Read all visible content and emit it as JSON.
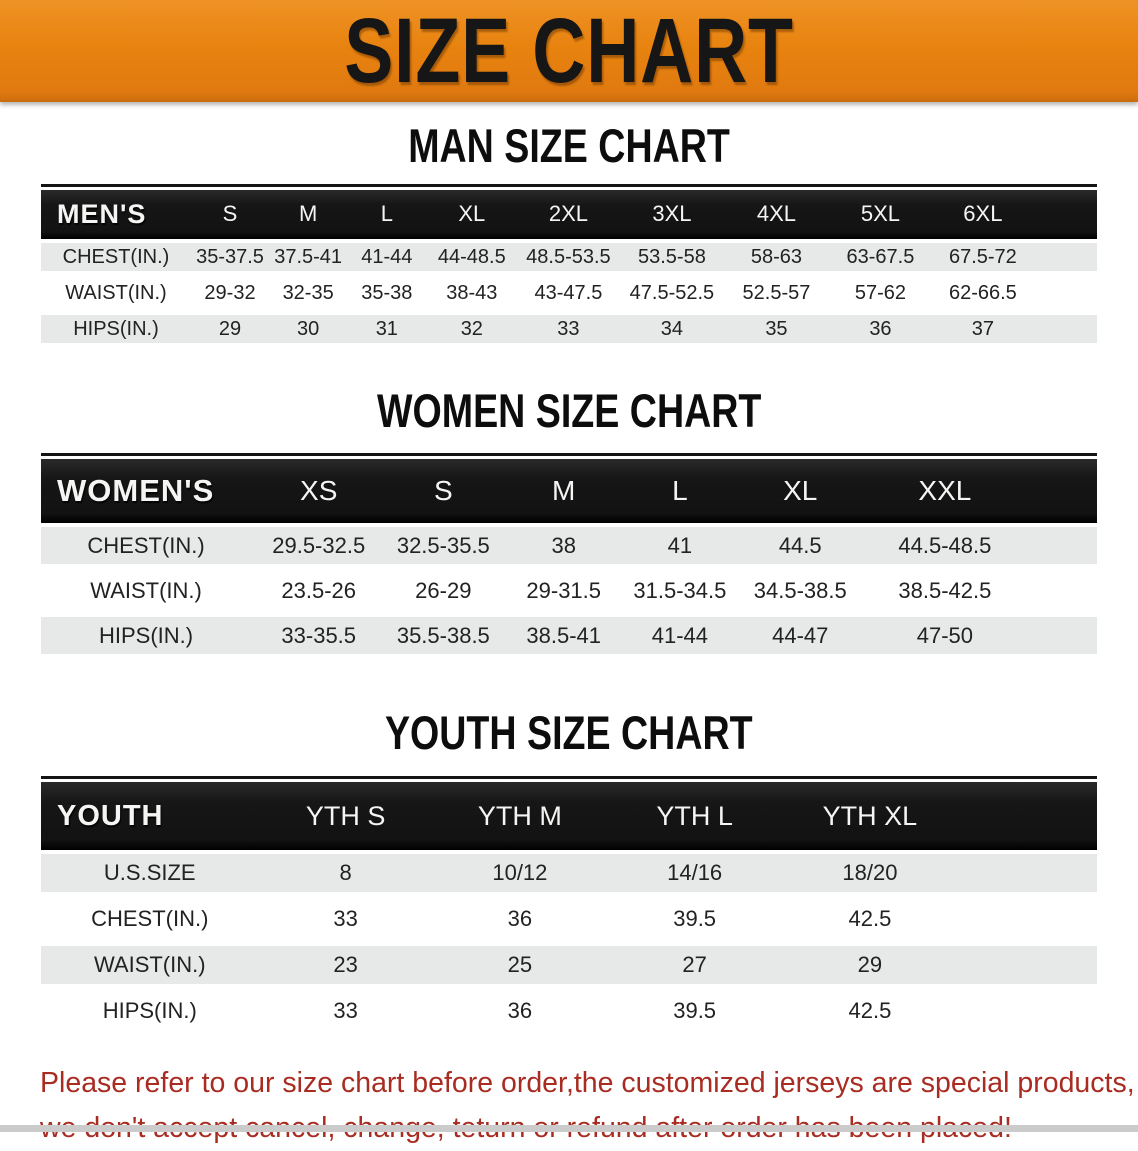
{
  "banner": {
    "title": "SIZE CHART"
  },
  "sections": {
    "men": {
      "heading": "MAN SIZE CHART",
      "header_label": "MEN'S",
      "columns": [
        "S",
        "M",
        "L",
        "XL",
        "2XL",
        "3XL",
        "4XL",
        "5XL",
        "6XL"
      ],
      "rows": [
        {
          "label": "CHEST(IN.)",
          "values": [
            "35-37.5",
            "37.5-41",
            "41-44",
            "44-48.5",
            "48.5-53.5",
            "53.5-58",
            "58-63",
            "63-67.5",
            "67.5-72"
          ]
        },
        {
          "label": "WAIST(IN.)",
          "values": [
            "29-32",
            "32-35",
            "35-38",
            "38-43",
            "43-47.5",
            "47.5-52.5",
            "52.5-57",
            "57-62",
            "62-66.5"
          ]
        },
        {
          "label": "HIPS(IN.)",
          "values": [
            "29",
            "30",
            "31",
            "32",
            "33",
            "34",
            "35",
            "36",
            "37"
          ]
        }
      ]
    },
    "women": {
      "heading": "WOMEN SIZE CHART",
      "header_label": "WOMEN'S",
      "columns": [
        "XS",
        "S",
        "M",
        "L",
        "XL",
        "XXL"
      ],
      "rows": [
        {
          "label": "CHEST(IN.)",
          "values": [
            "29.5-32.5",
            "32.5-35.5",
            "38",
            "41",
            "44.5",
            "44.5-48.5"
          ]
        },
        {
          "label": "WAIST(IN.)",
          "values": [
            "23.5-26",
            "26-29",
            "29-31.5",
            "31.5-34.5",
            "34.5-38.5",
            "38.5-42.5"
          ]
        },
        {
          "label": "HIPS(IN.)",
          "values": [
            "33-35.5",
            "35.5-38.5",
            "38.5-41",
            "41-44",
            "44-47",
            "47-50"
          ]
        }
      ]
    },
    "youth": {
      "heading": "YOUTH SIZE CHART",
      "header_label": "YOUTH",
      "columns": [
        "YTH S",
        "YTH M",
        "YTH L",
        "YTH XL"
      ],
      "rows": [
        {
          "label": "U.S.SIZE",
          "values": [
            "8",
            "10/12",
            "14/16",
            "18/20"
          ]
        },
        {
          "label": "CHEST(IN.)",
          "values": [
            "33",
            "36",
            "39.5",
            "42.5"
          ]
        },
        {
          "label": "WAIST(IN.)",
          "values": [
            "23",
            "25",
            "27",
            "29"
          ]
        },
        {
          "label": "HIPS(IN.)",
          "values": [
            "33",
            "36",
            "39.5",
            "42.5"
          ]
        }
      ]
    }
  },
  "disclaimer": {
    "line1": "Please refer to our size chart before order,the customized jerseys are special products,",
    "line2": "we don't accept cancel, change, teturn or refund after order has been placed!"
  },
  "colors": {
    "banner_orange": "#E8830F",
    "header_black": "#161616",
    "row_gray": "#E7E8E8",
    "disclaimer_red": "#A92C22"
  }
}
